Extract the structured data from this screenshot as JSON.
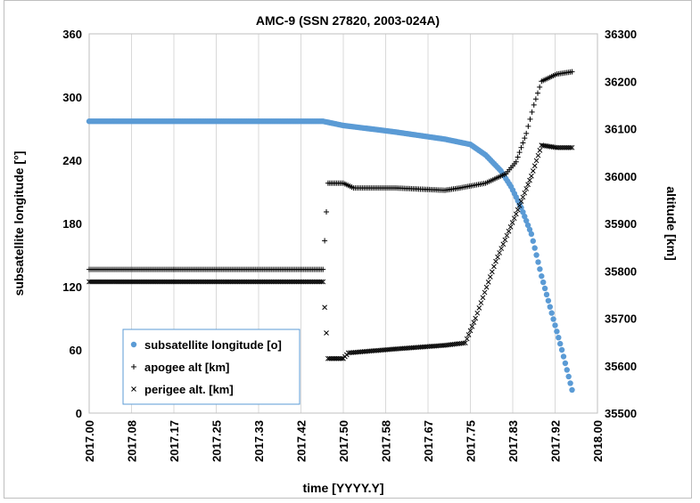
{
  "chart_data": {
    "type": "scatter",
    "title": "AMC-9 (SSN 27820, 2003-024A)",
    "xlabel": "time [YYYY.Y]",
    "ylabel": "subsatellite longitude [°]",
    "y2label": "altitude [km]",
    "xlim": [
      2017.0,
      2018.0
    ],
    "ylim": [
      0,
      360
    ],
    "y2lim": [
      35500,
      36300
    ],
    "x_ticks": [
      "2017.00",
      "2017.08",
      "2017.17",
      "2017.25",
      "2017.33",
      "2017.42",
      "2017.50",
      "2017.58",
      "2017.67",
      "2017.75",
      "2017.83",
      "2017.92",
      "2018.00"
    ],
    "y_ticks": [
      "0",
      "60",
      "120",
      "180",
      "240",
      "300",
      "360"
    ],
    "y2_ticks": [
      "35500",
      "35600",
      "35700",
      "35800",
      "35900",
      "36000",
      "36100",
      "36200",
      "36300"
    ],
    "grid": "vertical",
    "legend_position": "bottom-left",
    "series": [
      {
        "name": "subsatellite longitude [o]",
        "axis": "left",
        "marker": "circle",
        "color": "#5b9bd5",
        "points": [
          [
            2017.0,
            277
          ],
          [
            2017.46,
            277
          ],
          [
            2017.5,
            273
          ],
          [
            2017.6,
            267
          ],
          [
            2017.7,
            260
          ],
          [
            2017.75,
            255
          ],
          [
            2017.78,
            245
          ],
          [
            2017.81,
            230
          ],
          [
            2017.83,
            215
          ],
          [
            2017.85,
            195
          ],
          [
            2017.87,
            170
          ],
          [
            2017.89,
            130
          ],
          [
            2017.91,
            95
          ],
          [
            2017.93,
            60
          ],
          [
            2017.95,
            22
          ]
        ]
      },
      {
        "name": "apogee alt [km]",
        "axis": "right",
        "marker": "plus",
        "color": "#000000",
        "points": [
          [
            2017.0,
            35803
          ],
          [
            2017.46,
            35803
          ],
          [
            2017.47,
            35985
          ],
          [
            2017.5,
            35985
          ],
          [
            2017.52,
            35975
          ],
          [
            2017.6,
            35975
          ],
          [
            2017.7,
            35970
          ],
          [
            2017.73,
            35975
          ],
          [
            2017.78,
            35985
          ],
          [
            2017.82,
            36005
          ],
          [
            2017.84,
            36030
          ],
          [
            2017.86,
            36090
          ],
          [
            2017.875,
            36150
          ],
          [
            2017.89,
            36200
          ],
          [
            2017.92,
            36215
          ],
          [
            2017.95,
            36220
          ]
        ]
      },
      {
        "name": "perigee alt. [km]",
        "axis": "right",
        "marker": "cross",
        "color": "#000000",
        "points": [
          [
            2017.0,
            35777
          ],
          [
            2017.46,
            35777
          ],
          [
            2017.47,
            35615
          ],
          [
            2017.5,
            35615
          ],
          [
            2017.51,
            35627
          ],
          [
            2017.6,
            35635
          ],
          [
            2017.7,
            35643
          ],
          [
            2017.74,
            35648
          ],
          [
            2017.76,
            35700
          ],
          [
            2017.8,
            35820
          ],
          [
            2017.84,
            35920
          ],
          [
            2017.87,
            36000
          ],
          [
            2017.89,
            36065
          ],
          [
            2017.92,
            36060
          ],
          [
            2017.95,
            36060
          ]
        ]
      }
    ]
  }
}
